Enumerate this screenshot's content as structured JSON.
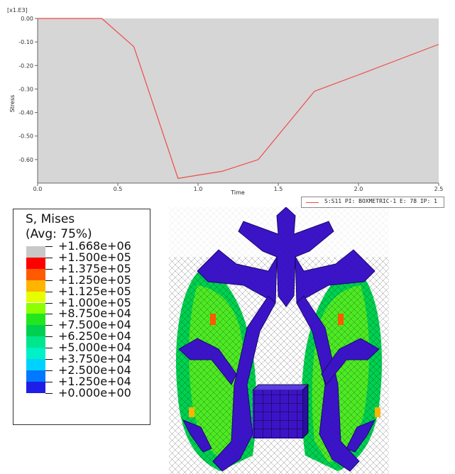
{
  "chart_data": {
    "type": "line",
    "title": "",
    "xlabel": "Time",
    "ylabel": "Stress",
    "y_multiplier": "[x1.E3]",
    "xlim": [
      0,
      2.5
    ],
    "ylim": [
      -0.7,
      0
    ],
    "x_ticks": [
      "0.0",
      "0.5",
      "1.0",
      "1.5",
      "2.0",
      "2.5"
    ],
    "y_ticks": [
      "0.00",
      "-0.10",
      "-0.20",
      "-0.30",
      "-0.40",
      "-0.50",
      "-0.60"
    ],
    "grid": false,
    "series": [
      {
        "name": "S:S11 PI: BOXMETRIC-1 E: 78 IP: 1",
        "color": "#f04a4a",
        "x": [
          0,
          0.4,
          0.6,
          0.875,
          1.15,
          1.375,
          1.725,
          2.0,
          2.25,
          2.5
        ],
        "y": [
          0,
          0,
          -0.12,
          -0.68,
          -0.65,
          -0.6,
          -0.31,
          -0.24,
          -0.175,
          -0.11
        ]
      }
    ],
    "legend_placement": "bottom-right"
  },
  "contour_legend": {
    "title": "S, Mises",
    "subtitle": "(Avg: 75%)",
    "levels": [
      {
        "label": "+1.668e+06",
        "color": "#c8c8c8"
      },
      {
        "label": "+1.500e+05",
        "color": "#ff0000"
      },
      {
        "label": "+1.375e+05",
        "color": "#ff5a00"
      },
      {
        "label": "+1.250e+05",
        "color": "#ffb400"
      },
      {
        "label": "+1.125e+05",
        "color": "#e6ff00"
      },
      {
        "label": "+1.000e+05",
        "color": "#8cff00"
      },
      {
        "label": "+8.750e+04",
        "color": "#22e61e"
      },
      {
        "label": "+7.500e+04",
        "color": "#00d050"
      },
      {
        "label": "+6.250e+04",
        "color": "#00e68c"
      },
      {
        "label": "+5.000e+04",
        "color": "#00f0c8"
      },
      {
        "label": "+3.750e+04",
        "color": "#00d2ff"
      },
      {
        "label": "+2.500e+04",
        "color": "#0078ff"
      },
      {
        "label": "+1.250e+04",
        "color": "#1e1ee6"
      },
      {
        "label": "+0.000e+00",
        "color": "#3c14c8"
      }
    ]
  },
  "model_view": {
    "frame_color": "#3c14c8",
    "hot_color": "#22e61e",
    "warm_color": "#8cff00",
    "box_color": "#3c14c8"
  }
}
